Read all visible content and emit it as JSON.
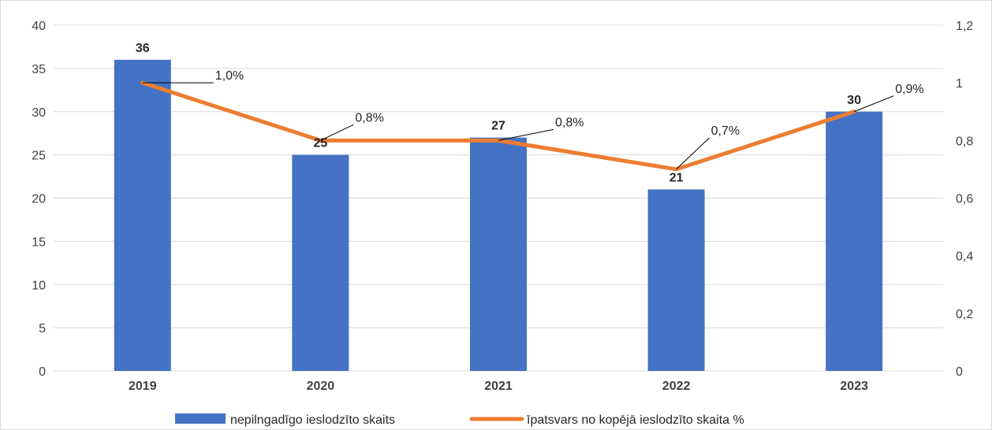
{
  "chart_data": {
    "type": "bar",
    "categories": [
      "2019",
      "2020",
      "2021",
      "2022",
      "2023"
    ],
    "series": [
      {
        "name": "nepilngadīgo ieslodzīto skaits",
        "type": "bar",
        "axis": "left",
        "color": "#4472c4",
        "values": [
          36,
          25,
          27,
          21,
          30
        ],
        "labels": [
          "36",
          "25",
          "27",
          "21",
          "30"
        ]
      },
      {
        "name": "īpatsvars no kopējā ieslodzīto skaita %",
        "type": "line",
        "axis": "right",
        "color": "#ed7d31",
        "values": [
          1.0,
          0.8,
          0.8,
          0.7,
          0.9
        ],
        "labels": [
          "1,0%",
          "0,8%",
          "0,8%",
          "0,7%",
          "0,9%"
        ]
      }
    ],
    "y_left": {
      "ylim": [
        0,
        40
      ],
      "ticks": [
        "0",
        "5",
        "10",
        "15",
        "20",
        "25",
        "30",
        "35",
        "40"
      ]
    },
    "y_right": {
      "ylim": [
        0,
        1.2
      ],
      "ticks": [
        "0",
        "0,2",
        "0,4",
        "0,6",
        "0,8",
        "1",
        "1,2"
      ]
    },
    "grid": true,
    "legend": "bottom"
  }
}
